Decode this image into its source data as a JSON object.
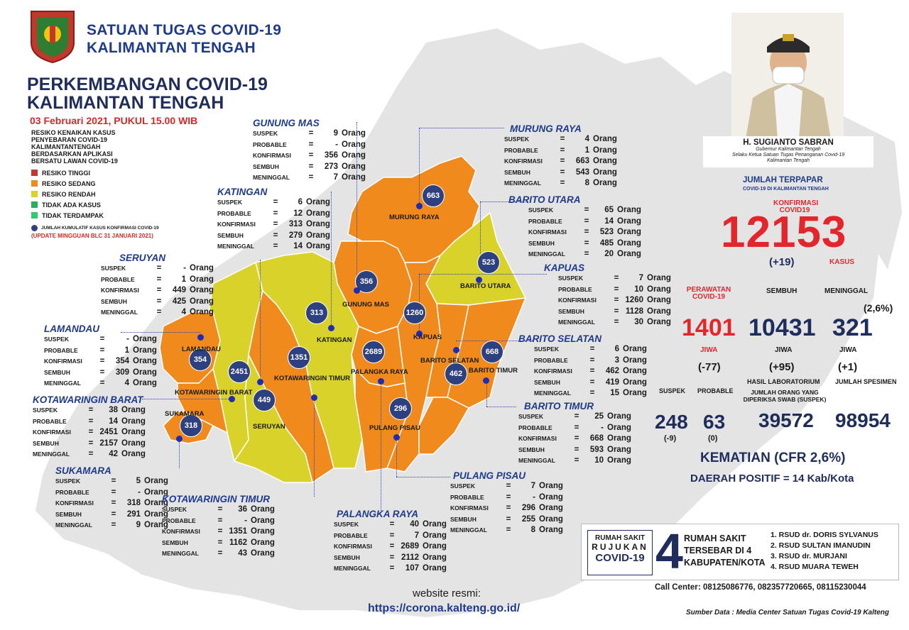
{
  "header": {
    "org_line1": "SATUAN TUGAS COVID-19",
    "org_line2": "KALIMANTAN TENGAH",
    "title_line1": "PERKEMBANGAN COVID-19",
    "title_line2": "KALIMANTAN TENGAH",
    "date": "03 Februari 2021, PUKUL 15.00 WIB"
  },
  "legend": {
    "heading_lines": [
      "RESIKO KENAIKAN KASUS",
      "PENYEBARAN COVID-19",
      "KALIMANTANTENGAH",
      "BERDASARKAN APLIKASI",
      "BERSATU LAWAN COVID-19"
    ],
    "items": [
      {
        "label": "RESIKO TINGGI",
        "color": "#c0392b"
      },
      {
        "label": "RESIKO SEDANG",
        "color": "#f08a1c"
      },
      {
        "label": "RESIKO RENDAH",
        "color": "#d8d22a"
      },
      {
        "label": "TIDAK ADA KASUS",
        "color": "#27ae60"
      },
      {
        "label": "TIDAK TERDAMPAK",
        "color": "#2ecc71"
      }
    ],
    "dot_note": "JUMLAH KUMULATIF KASUS KONFIRMASI COVID-19",
    "update_note": "(UPDATE MINGGUAN BLC 31 JANUARI 2021)"
  },
  "stat_labels": {
    "suspek": "SUSPEK",
    "probable": "PROBABLE",
    "konfirmasi": "KONFIRMASI",
    "sembuh": "SEMBUH",
    "meninggal": "MENINGGAL",
    "eq": "=",
    "unit": "Orang"
  },
  "regions": [
    {
      "name": "GUNUNG MAS",
      "suspek": "9",
      "probable": "-",
      "konfirmasi": "356",
      "sembuh": "273",
      "meninggal": "7"
    },
    {
      "name": "MURUNG RAYA",
      "suspek": "4",
      "probable": "1",
      "konfirmasi": "663",
      "sembuh": "543",
      "meninggal": "8"
    },
    {
      "name": "KATINGAN",
      "suspek": "6",
      "probable": "12",
      "konfirmasi": "313",
      "sembuh": "279",
      "meninggal": "14"
    },
    {
      "name": "BARITO UTARA",
      "suspek": "65",
      "probable": "14",
      "konfirmasi": "523",
      "sembuh": "485",
      "meninggal": "20"
    },
    {
      "name": "SERUYAN",
      "suspek": "-",
      "probable": "1",
      "konfirmasi": "449",
      "sembuh": "425",
      "meninggal": "4"
    },
    {
      "name": "KAPUAS",
      "suspek": "7",
      "probable": "10",
      "konfirmasi": "1260",
      "sembuh": "1128",
      "meninggal": "30"
    },
    {
      "name": "LAMANDAU",
      "suspek": "-",
      "probable": "1",
      "konfirmasi": "354",
      "sembuh": "309",
      "meninggal": "4"
    },
    {
      "name": "BARITO SELATAN",
      "suspek": "6",
      "probable": "3",
      "konfirmasi": "462",
      "sembuh": "419",
      "meninggal": "15"
    },
    {
      "name": "KOTAWARINGIN BARAT",
      "suspek": "38",
      "probable": "14",
      "konfirmasi": "2451",
      "sembuh": "2157",
      "meninggal": "42"
    },
    {
      "name": "BARITO TIMUR",
      "suspek": "25",
      "probable": "-",
      "konfirmasi": "668",
      "sembuh": "593",
      "meninggal": "10"
    },
    {
      "name": "SUKAMARA",
      "suspek": "5",
      "probable": "-",
      "konfirmasi": "318",
      "sembuh": "291",
      "meninggal": "9"
    },
    {
      "name": "PULANG PISAU",
      "suspek": "7",
      "probable": "-",
      "konfirmasi": "296",
      "sembuh": "255",
      "meninggal": "8"
    },
    {
      "name": "KOTAWARINGIN TIMUR",
      "suspek": "36",
      "probable": "-",
      "konfirmasi": "1351",
      "sembuh": "1162",
      "meninggal": "43"
    },
    {
      "name": "PALANGKA RAYA",
      "suspek": "40",
      "probable": "7",
      "konfirmasi": "2689",
      "sembuh": "2112",
      "meninggal": "107"
    }
  ],
  "map_labels": {
    "murung_raya": "MURUNG RAYA",
    "barito_utara": "BARITO UTARA",
    "gunung_mas": "GUNUNG MAS",
    "katingan": "KATINGAN",
    "kapuas": "KAPUAS",
    "lamandau": "LAMANDAU",
    "kotawaringin_barat": "KOTAWARINGIN BARAT",
    "kotawaringin_timur": "KOTAWARINGIN TIMUR",
    "palangka_raya": "PALANGKA RAYA",
    "barito_selatan": "BARITO SELATAN",
    "barito_timur": "BARITO TIMUR",
    "sukamara": "SUKAMARA",
    "seruyan": "SERUYAN",
    "pulang_pisau": "PULANG PISAU"
  },
  "map_bubbles": {
    "murung_raya": "663",
    "barito_utara": "523",
    "gunung_mas": "356",
    "katingan": "313",
    "kapuas": "1260",
    "palangka_raya": "2689",
    "lamandau": "354",
    "kotawaringin_barat": "2451",
    "kotawaringin_timur": "1351",
    "seruyan": "449",
    "sukamara": "318",
    "pulang_pisau": "296",
    "barito_selatan": "462",
    "barito_timur": "668"
  },
  "official": {
    "name": "H. SUGIANTO SABRAN",
    "role_line1": "Gubernur Kalimantan Tengah",
    "role_line2": "Selaku Ketua Satuan Tugas Penanganan Covid-19",
    "role_line3": "Kalimantan Tengah"
  },
  "summary": {
    "title": "JUMLAH TERPAPAR",
    "subtitle": "COVID-19 DI KALIMANTAN TENGAH",
    "konfirmasi_label_1": "KONFIRMASI",
    "konfirmasi_label_2": "COVID19",
    "konfirmasi": "12153",
    "konfirmasi_delta": "(+19)",
    "kasus": "KASUS",
    "perawatan_label_1": "PERAWATAN",
    "perawatan_label_2": "COVID-19",
    "sembuh_label": "SEMBUH",
    "meninggal_label": "MENINGGAL",
    "cfr_pct": "(2,6%)",
    "perawatan": "1401",
    "sembuh": "10431",
    "meninggal": "321",
    "jiwa": "JIWA",
    "perawatan_delta": "(-77)",
    "sembuh_delta": "(+95)",
    "meninggal_delta": "(+1)",
    "hasil_lab_label": "HASIL LABORATORIUM",
    "jumlah_spesimen_label": "JUMLAH SPESIMEN",
    "suspek_label": "SUSPEK",
    "probable_label": "PROBABLE",
    "swab_label_1": "JUMLAH ORANG YANG",
    "swab_label_2": "DIPERIKSA SWAB (SUSPEK)",
    "suspek": "248",
    "probable": "63",
    "suspek_delta": "(-9)",
    "probable_delta": "(0)",
    "swab": "39572",
    "spesimen": "98954",
    "kematian_line": "KEMATIAN (CFR 2,6%)",
    "daerah_line": "DAERAH POSITIF = 14 Kab/Kota"
  },
  "rumah_sakit": {
    "left_1": "RUMAH SAKIT",
    "left_2": "RUJUKAN",
    "left_3": "COVID-19",
    "count": "4",
    "mid_1": "RUMAH SAKIT",
    "mid_2": "TERSEBAR DI 4",
    "mid_3": "KABUPATEN/KOTA",
    "list": [
      "1. RSUD dr. DORIS SYLVANUS",
      "2. RSUD SULTAN IMANUDIN",
      "3. RSUD dr. MURJANI",
      "4. RSUD MUARA TEWEH"
    ]
  },
  "call_center": {
    "label": "Call Center",
    "numbers": ": 08125086776, 082357720665, 08115230044"
  },
  "website": {
    "label": "website resmi:",
    "url": "https://corona.kalteng.go.id/"
  },
  "source": "Sumber Data : Media Center Satuan Tugas Covid-19 Kalteng",
  "colors": {
    "orange": "#f08a1c",
    "yellow": "#d8d22a",
    "grey_land": "#e3e3e3",
    "navy": "#1f2d5c",
    "red": "#e3262c"
  }
}
